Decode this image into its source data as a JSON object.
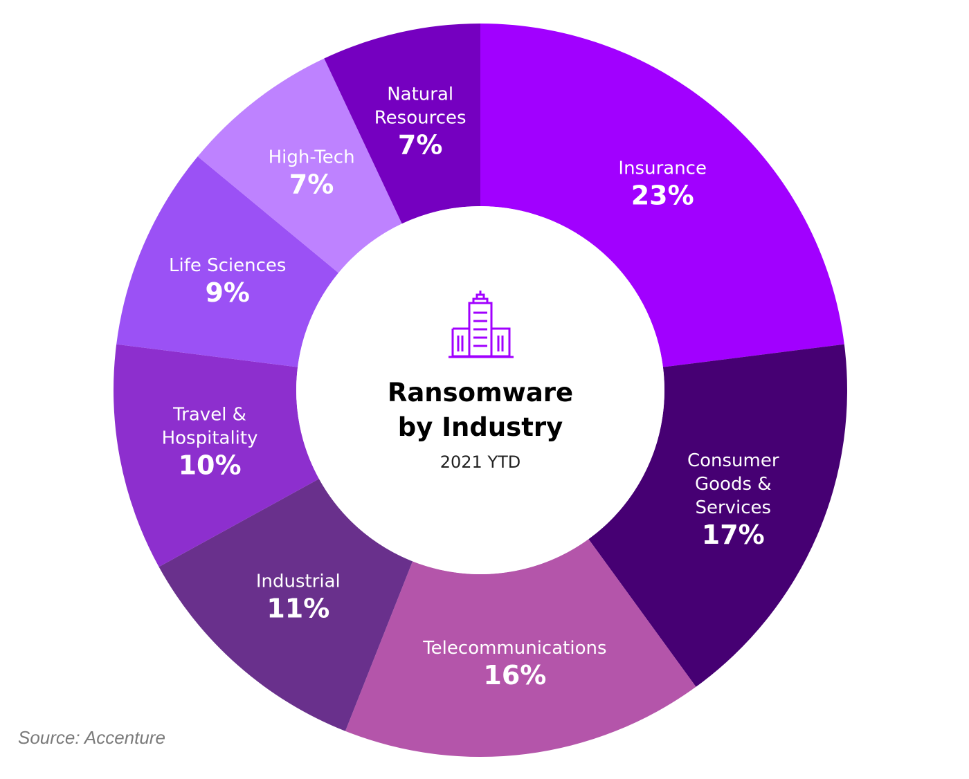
{
  "chart_data": {
    "type": "pie",
    "title": "Ransomware by Industry",
    "title_lines": [
      "Ransomware",
      "by Industry"
    ],
    "subtitle": "2021 YTD",
    "center_icon": "building-icon",
    "categories": [
      "Insurance",
      "Consumer Goods & Services",
      "Telecommunications",
      "Industrial",
      "Travel & Hospitality",
      "Life Sciences",
      "High-Tech",
      "Natural Resources"
    ],
    "values": [
      23,
      17,
      16,
      11,
      10,
      9,
      7,
      7
    ],
    "unit": "%",
    "slices": [
      {
        "name": "Insurance",
        "label_lines": [
          "Insurance"
        ],
        "value": 23,
        "value_label": "23%",
        "color": "#a100ff"
      },
      {
        "name": "Consumer Goods & Services",
        "label_lines": [
          "Consumer",
          "Goods &",
          "Services"
        ],
        "value": 17,
        "value_label": "17%",
        "color": "#460073"
      },
      {
        "name": "Telecommunications",
        "label_lines": [
          "Telecommunications"
        ],
        "value": 16,
        "value_label": "16%",
        "color": "#b455aa"
      },
      {
        "name": "Industrial",
        "label_lines": [
          "Industrial"
        ],
        "value": 11,
        "value_label": "11%",
        "color": "#69308c"
      },
      {
        "name": "Travel & Hospitality",
        "label_lines": [
          "Travel &",
          "Hospitality"
        ],
        "value": 10,
        "value_label": "10%",
        "color": "#8d2fce"
      },
      {
        "name": "Life Sciences",
        "label_lines": [
          "Life Sciences"
        ],
        "value": 9,
        "value_label": "9%",
        "color": "#9b51f5"
      },
      {
        "name": "High-Tech",
        "label_lines": [
          "High-Tech"
        ],
        "value": 7,
        "value_label": "7%",
        "color": "#be82ff"
      },
      {
        "name": "Natural Resources",
        "label_lines": [
          "Natural",
          "Resources"
        ],
        "value": 7,
        "value_label": "7%",
        "color": "#7500c0"
      }
    ]
  },
  "source": "Source: Accenture"
}
